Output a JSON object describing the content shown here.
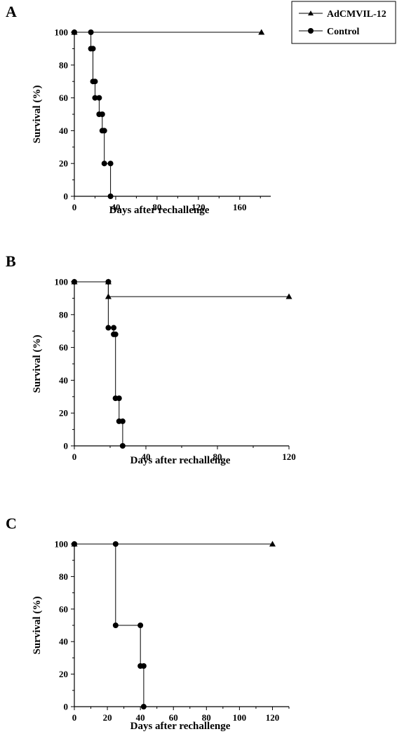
{
  "legend": {
    "entries": [
      {
        "label": "AdCMVIL-12",
        "marker": "triangle"
      },
      {
        "label": "Control",
        "marker": "circle"
      }
    ]
  },
  "chart_data": [
    {
      "panel": "A",
      "type": "line",
      "xlabel": "Days after rechallenge",
      "ylabel": "Survival (%)",
      "xlim": [
        0,
        190
      ],
      "ylim": [
        0,
        100
      ],
      "x_ticks": [
        0,
        40,
        80,
        120,
        160
      ],
      "y_ticks": [
        0,
        20,
        40,
        60,
        80,
        100
      ],
      "series": [
        {
          "name": "AdCMVIL-12",
          "marker": "triangle",
          "steps": [
            [
              0,
              100
            ],
            [
              181,
              100
            ]
          ]
        },
        {
          "name": "Control",
          "marker": "circle",
          "steps": [
            [
              0,
              100
            ],
            [
              16,
              100
            ],
            [
              16,
              90
            ],
            [
              18,
              90
            ],
            [
              18,
              70
            ],
            [
              20,
              70
            ],
            [
              20,
              60
            ],
            [
              24,
              60
            ],
            [
              24,
              50
            ],
            [
              27,
              50
            ],
            [
              27,
              40
            ],
            [
              29,
              40
            ],
            [
              29,
              20
            ],
            [
              35,
              20
            ],
            [
              35,
              0
            ]
          ]
        }
      ]
    },
    {
      "panel": "B",
      "type": "line",
      "xlabel": "Days after rechallenge",
      "ylabel": "Survival (%)",
      "xlim": [
        0,
        120
      ],
      "ylim": [
        0,
        100
      ],
      "x_ticks": [
        0,
        40,
        80,
        120
      ],
      "y_ticks": [
        0,
        20,
        40,
        60,
        80,
        100
      ],
      "series": [
        {
          "name": "AdCMVIL-12",
          "marker": "triangle",
          "steps": [
            [
              0,
              100
            ],
            [
              19,
              100
            ],
            [
              19,
              91
            ],
            [
              120,
              91
            ]
          ]
        },
        {
          "name": "Control",
          "marker": "circle",
          "steps": [
            [
              0,
              100
            ],
            [
              19,
              100
            ],
            [
              19,
              72
            ],
            [
              22,
              72
            ],
            [
              22,
              68
            ],
            [
              23,
              68
            ],
            [
              23,
              29
            ],
            [
              25,
              29
            ],
            [
              25,
              15
            ],
            [
              27,
              15
            ],
            [
              27,
              0
            ]
          ]
        }
      ]
    },
    {
      "panel": "C",
      "type": "line",
      "xlabel": "Days after rechallenge",
      "ylabel": "Survival (%)",
      "xlim": [
        0,
        130
      ],
      "ylim": [
        0,
        100
      ],
      "x_ticks": [
        0,
        20,
        40,
        60,
        80,
        100,
        120
      ],
      "y_ticks": [
        0,
        20,
        40,
        60,
        80,
        100
      ],
      "series": [
        {
          "name": "AdCMVIL-12",
          "marker": "triangle",
          "steps": [
            [
              0,
              100
            ],
            [
              120,
              100
            ]
          ]
        },
        {
          "name": "Control",
          "marker": "circle",
          "steps": [
            [
              0,
              100
            ],
            [
              25,
              100
            ],
            [
              25,
              50
            ],
            [
              40,
              50
            ],
            [
              40,
              25
            ],
            [
              42,
              25
            ],
            [
              42,
              0
            ]
          ]
        }
      ]
    }
  ]
}
